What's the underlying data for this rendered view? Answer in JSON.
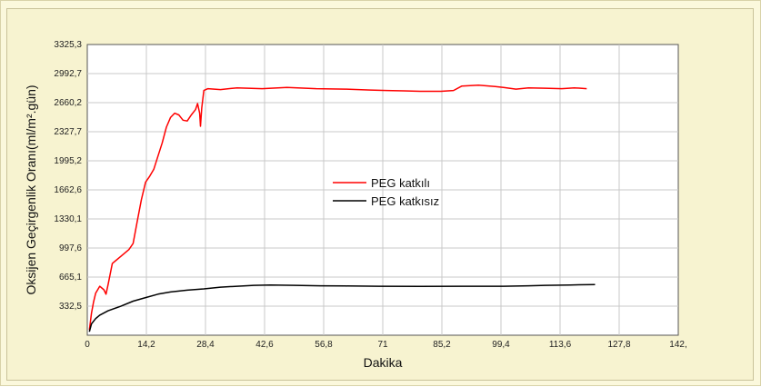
{
  "chart_data": {
    "type": "line",
    "title": "",
    "xlabel": "Dakika",
    "ylabel": "Oksijen Geçirgenlik Oranı(ml/m².gün)",
    "xlim": [
      0,
      142
    ],
    "ylim": [
      0,
      3325.3
    ],
    "x_ticks": [
      "0",
      "14,2",
      "28,4",
      "42,6",
      "56,8",
      "71",
      "85,2",
      "99,4",
      "113,6",
      "127,8",
      "142,"
    ],
    "y_ticks": [
      "332,5",
      "665,1",
      "997,6",
      "1330,1",
      "1662,6",
      "1995,2",
      "2327,7",
      "2660,2",
      "2992,7",
      "3325,3"
    ],
    "grid": true,
    "legend_position": "center",
    "series": [
      {
        "name": "PEG katkılı",
        "color": "#ff0000",
        "points": [
          [
            0.5,
            60
          ],
          [
            1,
            250
          ],
          [
            1.5,
            380
          ],
          [
            2,
            480
          ],
          [
            3,
            560
          ],
          [
            4,
            520
          ],
          [
            4.5,
            470
          ],
          [
            5,
            580
          ],
          [
            6,
            820
          ],
          [
            8,
            900
          ],
          [
            10,
            980
          ],
          [
            11,
            1050
          ],
          [
            12,
            1300
          ],
          [
            13,
            1550
          ],
          [
            14,
            1750
          ],
          [
            15,
            1820
          ],
          [
            16,
            1900
          ],
          [
            17,
            2050
          ],
          [
            18,
            2200
          ],
          [
            19,
            2380
          ],
          [
            20,
            2490
          ],
          [
            21,
            2540
          ],
          [
            22,
            2520
          ],
          [
            23,
            2460
          ],
          [
            24,
            2450
          ],
          [
            25,
            2520
          ],
          [
            26,
            2580
          ],
          [
            26.5,
            2650
          ],
          [
            27,
            2540
          ],
          [
            27.2,
            2390
          ],
          [
            27.5,
            2600
          ],
          [
            28,
            2800
          ],
          [
            29,
            2820
          ],
          [
            32,
            2810
          ],
          [
            36,
            2830
          ],
          [
            42,
            2820
          ],
          [
            48,
            2835
          ],
          [
            55,
            2820
          ],
          [
            62,
            2815
          ],
          [
            68,
            2805
          ],
          [
            72,
            2800
          ],
          [
            76,
            2795
          ],
          [
            80,
            2790
          ],
          [
            85,
            2790
          ],
          [
            88,
            2800
          ],
          [
            90,
            2850
          ],
          [
            94,
            2860
          ],
          [
            98,
            2845
          ],
          [
            100,
            2835
          ],
          [
            103,
            2815
          ],
          [
            106,
            2830
          ],
          [
            110,
            2825
          ],
          [
            114,
            2820
          ],
          [
            117,
            2830
          ],
          [
            120,
            2820
          ]
        ]
      },
      {
        "name": "PEG katkısız",
        "color": "#000000",
        "points": [
          [
            0.5,
            40
          ],
          [
            1,
            130
          ],
          [
            2,
            190
          ],
          [
            3,
            230
          ],
          [
            5,
            280
          ],
          [
            8,
            330
          ],
          [
            11,
            390
          ],
          [
            14,
            430
          ],
          [
            17,
            470
          ],
          [
            20,
            495
          ],
          [
            24,
            515
          ],
          [
            28,
            530
          ],
          [
            32,
            550
          ],
          [
            36,
            560
          ],
          [
            40,
            570
          ],
          [
            44,
            575
          ],
          [
            50,
            570
          ],
          [
            56,
            565
          ],
          [
            62,
            563
          ],
          [
            70,
            560
          ],
          [
            80,
            558
          ],
          [
            90,
            560
          ],
          [
            100,
            560
          ],
          [
            106,
            565
          ],
          [
            110,
            570
          ],
          [
            116,
            575
          ],
          [
            122,
            580
          ]
        ]
      }
    ]
  }
}
